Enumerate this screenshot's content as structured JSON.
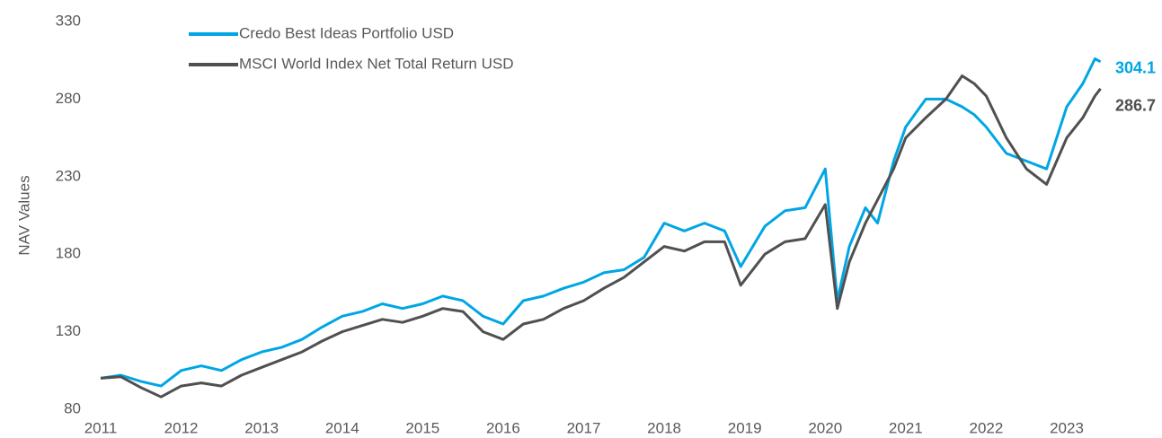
{
  "chart_data": {
    "type": "line",
    "y_label": "NAV Values",
    "x": [
      2011.0,
      2011.25,
      2011.5,
      2011.75,
      2012.0,
      2012.25,
      2012.5,
      2012.75,
      2013.0,
      2013.25,
      2013.5,
      2013.75,
      2014.0,
      2014.25,
      2014.5,
      2014.75,
      2015.0,
      2015.25,
      2015.5,
      2015.75,
      2016.0,
      2016.25,
      2016.5,
      2016.75,
      2017.0,
      2017.25,
      2017.5,
      2017.75,
      2018.0,
      2018.25,
      2018.5,
      2018.75,
      2018.95,
      2019.25,
      2019.5,
      2019.75,
      2020.0,
      2020.15,
      2020.3,
      2020.5,
      2020.65,
      2020.85,
      2021.0,
      2021.25,
      2021.5,
      2021.7,
      2021.85,
      2022.0,
      2022.25,
      2022.5,
      2022.75,
      2023.0,
      2023.2,
      2023.35,
      2023.42
    ],
    "series": [
      {
        "name": "Credo Best Ideas Portfolio USD",
        "color": "#00a6e4",
        "values": [
          100,
          102,
          98,
          95,
          105,
          108,
          105,
          112,
          117,
          120,
          125,
          133,
          140,
          143,
          148,
          145,
          148,
          153,
          150,
          140,
          135,
          150,
          153,
          158,
          162,
          168,
          170,
          178,
          200,
          195,
          200,
          195,
          172,
          198,
          208,
          210,
          235,
          150,
          185,
          210,
          200,
          240,
          262,
          280,
          280,
          275,
          270,
          262,
          245,
          240,
          235,
          275,
          290,
          306,
          304.1
        ]
      },
      {
        "name": "MSCI World Index Net Total Return USD",
        "color": "#505050",
        "values": [
          100,
          101,
          94,
          88,
          95,
          97,
          95,
          102,
          107,
          112,
          117,
          124,
          130,
          134,
          138,
          136,
          140,
          145,
          143,
          130,
          125,
          135,
          138,
          145,
          150,
          158,
          165,
          175,
          185,
          182,
          188,
          188,
          160,
          180,
          188,
          190,
          212,
          145,
          175,
          200,
          215,
          235,
          255,
          268,
          280,
          295,
          290,
          282,
          255,
          235,
          225,
          255,
          268,
          282,
          286.7
        ]
      }
    ],
    "xlim": [
      2011,
      2023.6
    ],
    "xticks": [
      2011,
      2012,
      2013,
      2014,
      2015,
      2016,
      2017,
      2018,
      2019,
      2020,
      2021,
      2022,
      2023
    ],
    "ylim": [
      80,
      330
    ],
    "yticks": [
      80,
      130,
      180,
      230,
      280,
      330
    ],
    "grid": false
  }
}
